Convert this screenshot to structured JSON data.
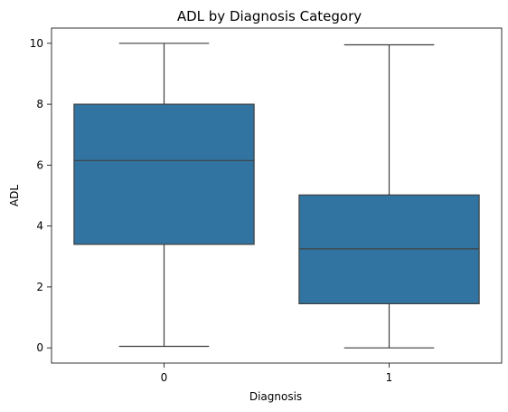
{
  "chart_data": {
    "type": "box",
    "title": "ADL by Diagnosis Category",
    "xlabel": "Diagnosis",
    "ylabel": "ADL",
    "categories": [
      "0",
      "1"
    ],
    "ylim": [
      -0.5,
      10.5
    ],
    "yticks": [
      0,
      2,
      4,
      6,
      8,
      10
    ],
    "boxes": [
      {
        "category": "0",
        "min": 0.05,
        "q1": 3.4,
        "median": 6.15,
        "q3": 8.0,
        "max": 10.0
      },
      {
        "category": "1",
        "min": 0.0,
        "q1": 1.45,
        "median": 3.25,
        "q3": 5.02,
        "max": 9.95
      }
    ],
    "colors": {
      "box_fill": "#3274a1",
      "line": "#3f3f3f"
    },
    "grid": false,
    "legend": false
  }
}
